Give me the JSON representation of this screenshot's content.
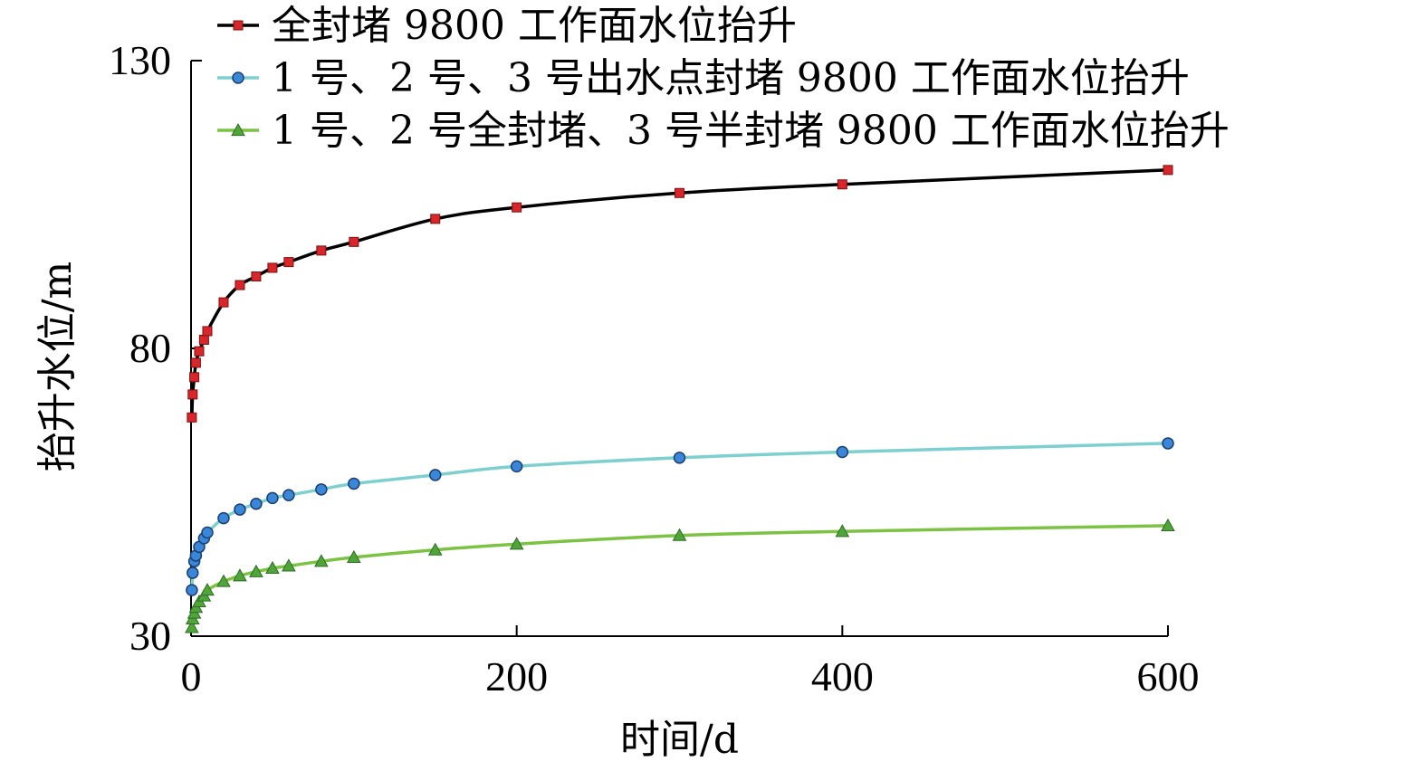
{
  "chart_data": {
    "type": "line",
    "title": "",
    "xlabel": "时间/d",
    "ylabel": "抬升水位/m",
    "xlim": [
      0,
      600
    ],
    "ylim": [
      30,
      130
    ],
    "xticks": [
      "0",
      "200",
      "400",
      "600"
    ],
    "yticks": [
      "30",
      "80",
      "130"
    ],
    "grid": false,
    "legend_position": "top",
    "series": [
      {
        "name": "全封堵 9800 工作面水位抬升",
        "color": "#000000",
        "marker": "square",
        "marker_color": "#d8262b",
        "x": [
          0.5,
          1,
          2,
          3,
          5,
          8,
          10,
          20,
          30,
          40,
          50,
          60,
          80,
          100,
          150,
          200,
          300,
          400,
          600
        ],
        "y": [
          68,
          72,
          75,
          77.5,
          79.5,
          81.5,
          83,
          88,
          91,
          92.5,
          94,
          95,
          97,
          98.5,
          102.5,
          104.5,
          107,
          108.5,
          111
        ]
      },
      {
        "name": "1 号、2 号、3 号出水点封堵 9800 工作面水位抬升",
        "color": "#7ecfcf",
        "marker": "circle",
        "marker_color": "#3a87d9",
        "x": [
          0.5,
          1,
          2,
          3,
          5,
          8,
          10,
          20,
          30,
          40,
          50,
          60,
          80,
          100,
          150,
          200,
          300,
          400,
          600
        ],
        "y": [
          38,
          41,
          43,
          44,
          45.5,
          47,
          48,
          50.5,
          52,
          53,
          54,
          54.5,
          55.5,
          56.5,
          58,
          59.5,
          61,
          62,
          63.5
        ]
      },
      {
        "name": "1 号、2 号全封堵、3 号半封堵 9800 工作面水位抬升",
        "color": "#7cc243",
        "marker": "triangle",
        "marker_color": "#4fa53a",
        "x": [
          0.5,
          1,
          2,
          3,
          5,
          8,
          10,
          20,
          30,
          40,
          50,
          60,
          80,
          100,
          150,
          200,
          300,
          400,
          600
        ],
        "y": [
          31.5,
          33,
          34,
          35,
          36,
          37,
          38,
          39.5,
          40.5,
          41.2,
          41.8,
          42.2,
          43,
          43.7,
          45,
          46,
          47.5,
          48.2,
          49.2
        ]
      }
    ]
  }
}
